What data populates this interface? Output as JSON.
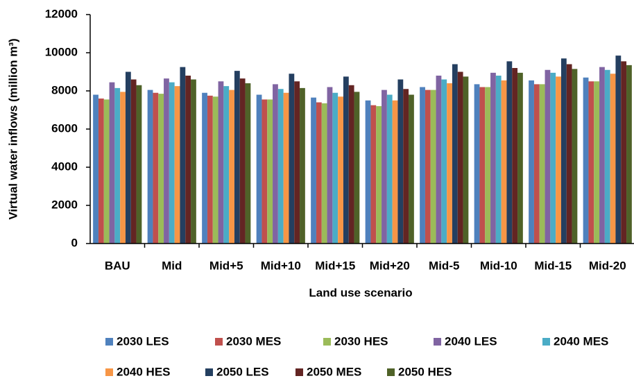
{
  "chart_data": {
    "type": "bar",
    "x_label": "Land use scenario",
    "y_label": "Virtual water inflows (million m³)",
    "categories": [
      "BAU",
      "Mid",
      "Mid+5",
      "Mid+10",
      "Mid+15",
      "Mid+20",
      "Mid-5",
      "Mid-10",
      "Mid-15",
      "Mid-20"
    ],
    "series": [
      {
        "name": "2030 LES",
        "color": "#4f81bd",
        "values": [
          7800,
          8050,
          7900,
          7800,
          7650,
          7500,
          8200,
          8350,
          8550,
          8700
        ]
      },
      {
        "name": "2030 MES",
        "color": "#c0504d",
        "values": [
          7600,
          7900,
          7750,
          7550,
          7400,
          7250,
          8050,
          8200,
          8350,
          8500
        ]
      },
      {
        "name": "2030 HES",
        "color": "#9bbb59",
        "values": [
          7550,
          7850,
          7700,
          7550,
          7350,
          7200,
          8050,
          8200,
          8350,
          8500
        ]
      },
      {
        "name": "2040 LES",
        "color": "#8064a2",
        "values": [
          8450,
          8650,
          8500,
          8350,
          8200,
          8050,
          8800,
          8950,
          9100,
          9250
        ]
      },
      {
        "name": "2040 MES",
        "color": "#4bacc6",
        "values": [
          8150,
          8450,
          8250,
          8100,
          7900,
          7800,
          8600,
          8800,
          8950,
          9100
        ]
      },
      {
        "name": "2040 HES",
        "color": "#f79646",
        "values": [
          7950,
          8250,
          8050,
          7900,
          7700,
          7500,
          8400,
          8550,
          8750,
          8900
        ]
      },
      {
        "name": "2050 LES",
        "color": "#243f60",
        "values": [
          9000,
          9250,
          9050,
          8900,
          8750,
          8600,
          9400,
          9550,
          9700,
          9850
        ]
      },
      {
        "name": "2050 MES",
        "color": "#632523",
        "values": [
          8600,
          8800,
          8650,
          8500,
          8300,
          8100,
          9000,
          9200,
          9400,
          9550
        ]
      },
      {
        "name": "2050 HES",
        "color": "#4f6228",
        "values": [
          8300,
          8600,
          8400,
          8150,
          7950,
          7800,
          8750,
          8950,
          9150,
          9350
        ]
      }
    ],
    "ylim": [
      0,
      12000
    ],
    "yticks": [
      0,
      2000,
      4000,
      6000,
      8000,
      10000,
      12000
    ]
  }
}
